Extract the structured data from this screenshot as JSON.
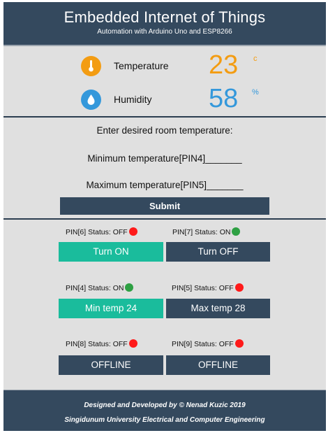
{
  "header": {
    "title": "Embedded Internet of Things",
    "subtitle": "Automation with Arduino Uno and ESP8266"
  },
  "sensors": {
    "temperature": {
      "label": "Temperature",
      "value": "23",
      "unit": "c",
      "icon": "thermometer-icon",
      "color": "#f39c12"
    },
    "humidity": {
      "label": "Humidity",
      "value": "58",
      "unit": "%",
      "icon": "water-drop-icon",
      "color": "#3498db"
    }
  },
  "form": {
    "prompt": "Enter desired room temperature:",
    "min_label": "Minimum temperature[PIN4]_______",
    "max_label": "Maximum temperature[PIN5]_______",
    "submit_label": "Submit"
  },
  "pins": [
    {
      "status_label": "PIN[6] Status: OFF",
      "state": "off",
      "button": "Turn ON"
    },
    {
      "status_label": "PIN[7] Status: ON",
      "state": "on",
      "button": "Turn OFF"
    },
    {
      "status_label": "PIN[4] Status: ON",
      "state": "on",
      "button": "Min temp 24"
    },
    {
      "status_label": "PIN[5] Status: OFF",
      "state": "off",
      "button": "Max temp 28"
    },
    {
      "status_label": "PIN[8] Status: OFF",
      "state": "off",
      "button": "OFFLINE"
    },
    {
      "status_label": "PIN[9] Status: OFF",
      "state": "off",
      "button": "OFFLINE"
    }
  ],
  "colors": {
    "header_bg": "#34495e",
    "accent_teal": "#1abc9c",
    "status_off": "#ff1a1a",
    "status_on": "#2ea043"
  },
  "footer": {
    "line1": "Designed and Developed by © Nenad Kuzic 2019",
    "line2": "Singidunum University Electrical and Computer Engineering"
  }
}
